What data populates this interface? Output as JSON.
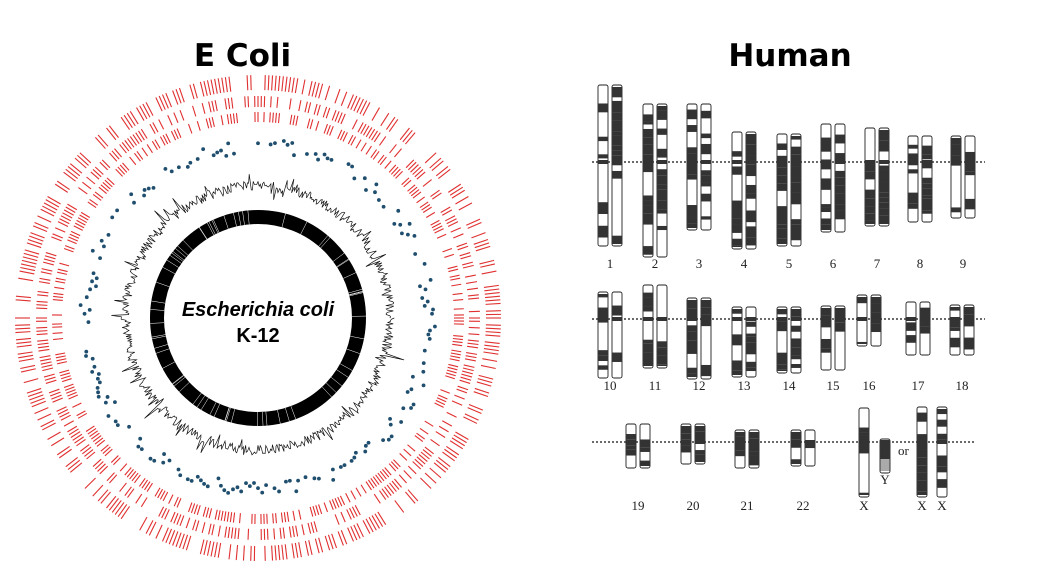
{
  "left_panel": {
    "title": "E Coli",
    "genome_label_line1": "Escherichia coli",
    "genome_label_line2": "K-12",
    "colors": {
      "feature_ticks": "#e03030",
      "dots": "#1f4e6e",
      "profile": "#111111",
      "inner_ring": "#000000"
    }
  },
  "right_panel": {
    "title": "Human",
    "or_label": "or",
    "rows": [
      [
        {
          "label": "1"
        },
        {
          "label": "2"
        },
        {
          "label": "3"
        },
        {
          "label": "4"
        },
        {
          "label": "5"
        },
        {
          "label": "6"
        },
        {
          "label": "7"
        },
        {
          "label": "8"
        },
        {
          "label": "9"
        }
      ],
      [
        {
          "label": "10"
        },
        {
          "label": "11"
        },
        {
          "label": "12"
        },
        {
          "label": "13"
        },
        {
          "label": "14"
        },
        {
          "label": "15"
        },
        {
          "label": "16"
        },
        {
          "label": "17"
        },
        {
          "label": "18"
        }
      ],
      [
        {
          "label": "19"
        },
        {
          "label": "20"
        },
        {
          "label": "21"
        },
        {
          "label": "22"
        },
        {
          "label": "X"
        },
        {
          "label": "Y"
        },
        {
          "label": "X"
        },
        {
          "label": "X"
        }
      ]
    ],
    "colors": {
      "band_dark": "#333333",
      "band_light": "#ffffff",
      "band_grey": "#aaaaaa",
      "outline": "#222222"
    }
  }
}
